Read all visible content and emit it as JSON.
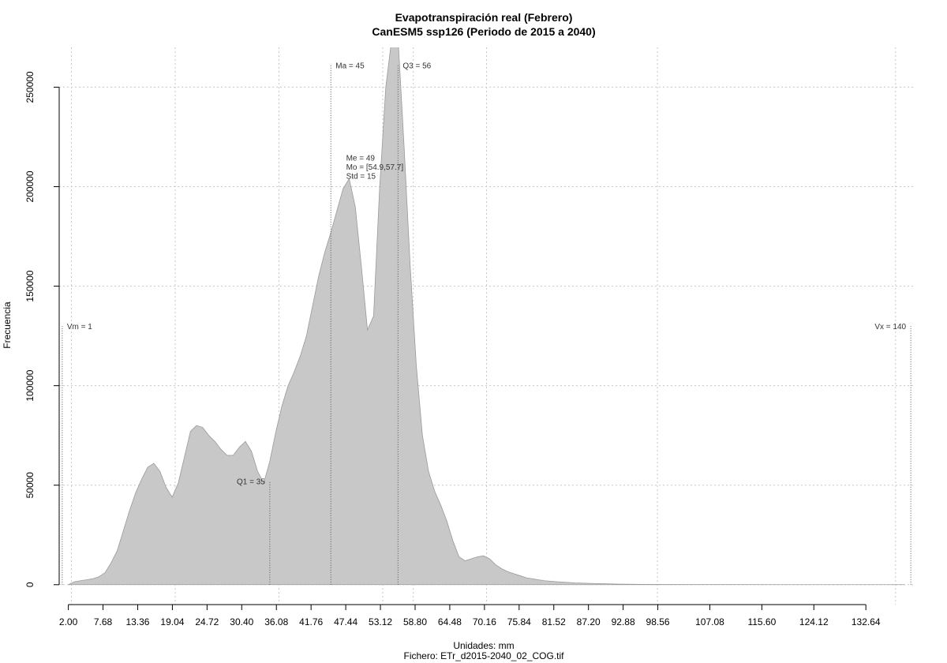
{
  "chart_data": {
    "type": "area",
    "title": "Evapotranspiración real (Febrero)",
    "subtitle": "CanESM5 ssp126 (Periodo de 2015 a 2040)",
    "xlabel": "Unidades: mm",
    "ylabel": "Frecuencia",
    "footer": "Fichero: ETr_d2015-2040_02_COG.tif",
    "xlim": [
      0.5,
      140.5
    ],
    "ylim": [
      -10000,
      270000
    ],
    "grid": true,
    "fill_color": "#c8c8c8",
    "x_ticks": [
      2.0,
      7.68,
      13.36,
      19.04,
      24.72,
      30.4,
      36.08,
      41.76,
      47.44,
      53.12,
      58.8,
      64.48,
      70.16,
      75.84,
      81.52,
      87.2,
      92.88,
      98.56,
      107.08,
      115.6,
      124.12,
      132.64
    ],
    "x_tick_labels": [
      "2.00",
      "7.68",
      "13.36",
      "19.04",
      "24.72",
      "30.40",
      "36.08",
      "41.76",
      "47.44",
      "53.12",
      "58.80",
      "64.48",
      "70.16",
      "75.84",
      "81.52",
      "87.20",
      "92.88",
      "98.56",
      "107.08",
      "115.60",
      "124.12",
      "132.64"
    ],
    "y_ticks": [
      0,
      50000,
      100000,
      150000,
      200000,
      250000
    ],
    "y_tick_labels": [
      "0",
      "50000",
      "100000",
      "150000",
      "200000",
      "250000"
    ],
    "x_grid": [
      2.5,
      19.5,
      36.5,
      53.5,
      58.5,
      70.5,
      98.5,
      137.5
    ],
    "x": [
      2,
      3,
      4,
      5,
      6,
      7,
      8,
      9,
      10,
      11,
      12,
      13,
      14,
      15,
      16,
      17,
      18,
      19,
      20,
      21,
      22,
      23,
      24,
      25,
      26,
      27,
      28,
      29,
      30,
      31,
      32,
      33,
      34,
      35,
      36,
      37,
      38,
      39,
      40,
      41,
      42,
      43,
      44,
      45,
      46,
      47,
      48,
      49,
      50,
      51,
      52,
      53,
      54,
      55,
      56,
      57,
      58,
      59,
      60,
      61,
      62,
      63,
      64,
      65,
      66,
      67,
      68,
      69,
      70,
      71,
      72,
      73,
      74,
      75,
      76,
      77,
      78,
      79,
      80,
      82,
      85,
      88,
      92,
      96,
      100,
      110,
      120,
      130,
      139
    ],
    "y": [
      0,
      1500,
      2000,
      2500,
      3000,
      4000,
      6000,
      11000,
      17000,
      27000,
      37000,
      46000,
      53000,
      59000,
      61000,
      57000,
      49000,
      44000,
      51000,
      64000,
      77000,
      80000,
      79000,
      75000,
      72000,
      68000,
      65000,
      65000,
      69000,
      72000,
      67000,
      57000,
      51000,
      62000,
      77000,
      90000,
      100000,
      107000,
      115000,
      125000,
      140000,
      155000,
      167000,
      177000,
      188000,
      199000,
      204000,
      190000,
      160000,
      128000,
      135000,
      200000,
      250000,
      275000,
      275000,
      220000,
      160000,
      110000,
      75000,
      57000,
      47000,
      40000,
      32000,
      22000,
      14000,
      12000,
      13000,
      14000,
      14500,
      13000,
      10000,
      8000,
      6500,
      5500,
      4500,
      3500,
      3000,
      2500,
      2000,
      1500,
      900,
      600,
      300,
      150,
      80,
      40,
      20,
      10,
      0
    ],
    "markers": [
      {
        "name": "Vm",
        "x": 1.0,
        "top": 130000,
        "label": "Vm = 1",
        "anchor": "start"
      },
      {
        "name": "Q1",
        "x": 35.0,
        "top": 52000,
        "label": "Q1 = 35",
        "anchor": "end"
      },
      {
        "name": "Ma",
        "x": 45.0,
        "top": 261000,
        "label": "Ma = 45",
        "anchor": "start"
      },
      {
        "name": "Q3",
        "x": 56.0,
        "top": 261000,
        "label": "Q3 = 56",
        "anchor": "start"
      },
      {
        "name": "Vx",
        "x": 140.0,
        "top": 130000,
        "label": "Vx = 140",
        "anchor": "end"
      }
    ],
    "stats_block": {
      "x": 47.5,
      "y": 213000,
      "lines": [
        "Me = 49",
        "Mo = [54.9,57.7]",
        "Std = 15"
      ]
    }
  }
}
